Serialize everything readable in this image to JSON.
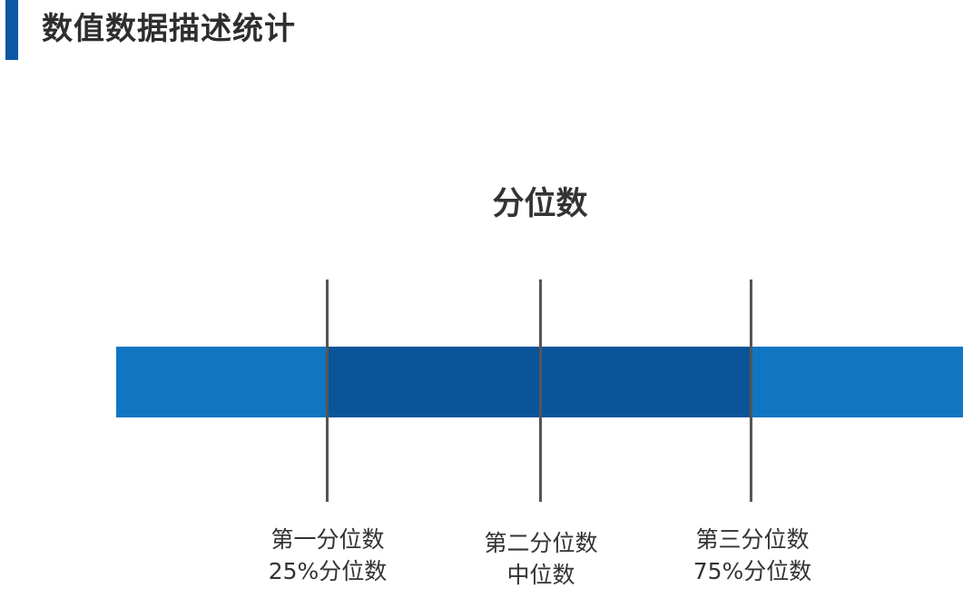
{
  "header": {
    "title": "数值数据描述统计",
    "accent_color": "#0b57a4"
  },
  "diagram": {
    "title": "分位数",
    "band_outer_color": "#1176c2",
    "band_inner_color": "#0a5499",
    "quantiles": [
      {
        "line1": "第一分位数",
        "line2": "25%分位数"
      },
      {
        "line1": "第二分位数",
        "line2": "中位数"
      },
      {
        "line1": "第三分位数",
        "line2": "75%分位数"
      }
    ]
  }
}
